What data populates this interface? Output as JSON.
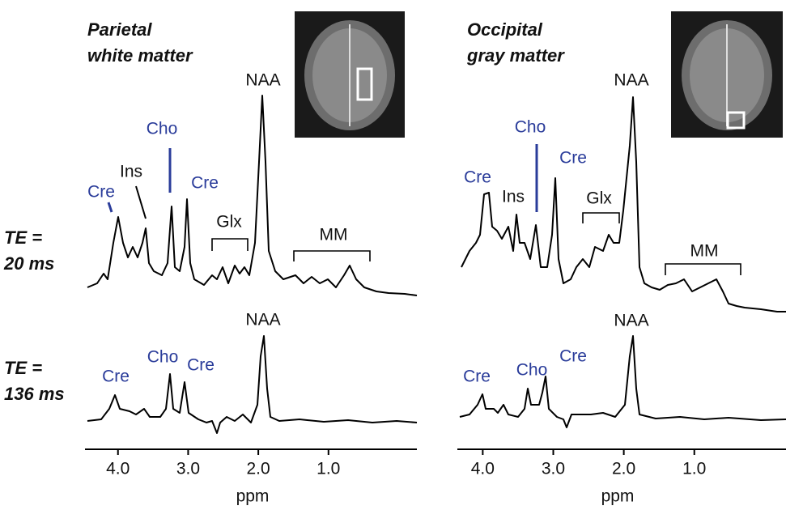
{
  "rows": [
    {
      "label": [
        "TE =",
        "20 ms"
      ]
    },
    {
      "label": [
        "TE =",
        "136 ms"
      ]
    }
  ],
  "panels": [
    {
      "title": [
        "Parietal",
        "white matter"
      ],
      "peaks": [
        [
          "NAA",
          "Cho",
          "Ins",
          "Cre",
          "Cre",
          "Glx",
          "MM"
        ],
        [
          "NAA",
          "Cho",
          "Cre",
          "Cre"
        ]
      ],
      "axis": {
        "label": "ppm",
        "xlim": [
          4.47,
          -0.26
        ],
        "xticks": [
          {
            "value": 4,
            "label": "4.0"
          },
          {
            "value": 3,
            "label": "3.0"
          },
          {
            "value": 2,
            "label": "2.0"
          },
          {
            "value": 1,
            "label": "1.0"
          }
        ]
      }
    },
    {
      "title": [
        "Occipital",
        "gray matter"
      ],
      "peaks": [
        [
          "NAA",
          "Cho",
          "Cre",
          "Cre",
          "Ins",
          "Glx",
          "MM"
        ],
        [
          "NAA",
          "Cre",
          "Cho",
          "Cre"
        ]
      ],
      "axis": {
        "label": "ppm",
        "xlim": [
          4.36,
          -0.3
        ],
        "xticks": [
          {
            "value": 4,
            "label": "4.0"
          },
          {
            "value": 3,
            "label": "3.0"
          },
          {
            "value": 2,
            "label": "2.0"
          },
          {
            "value": 1,
            "label": "1.0"
          }
        ]
      }
    }
  ]
}
